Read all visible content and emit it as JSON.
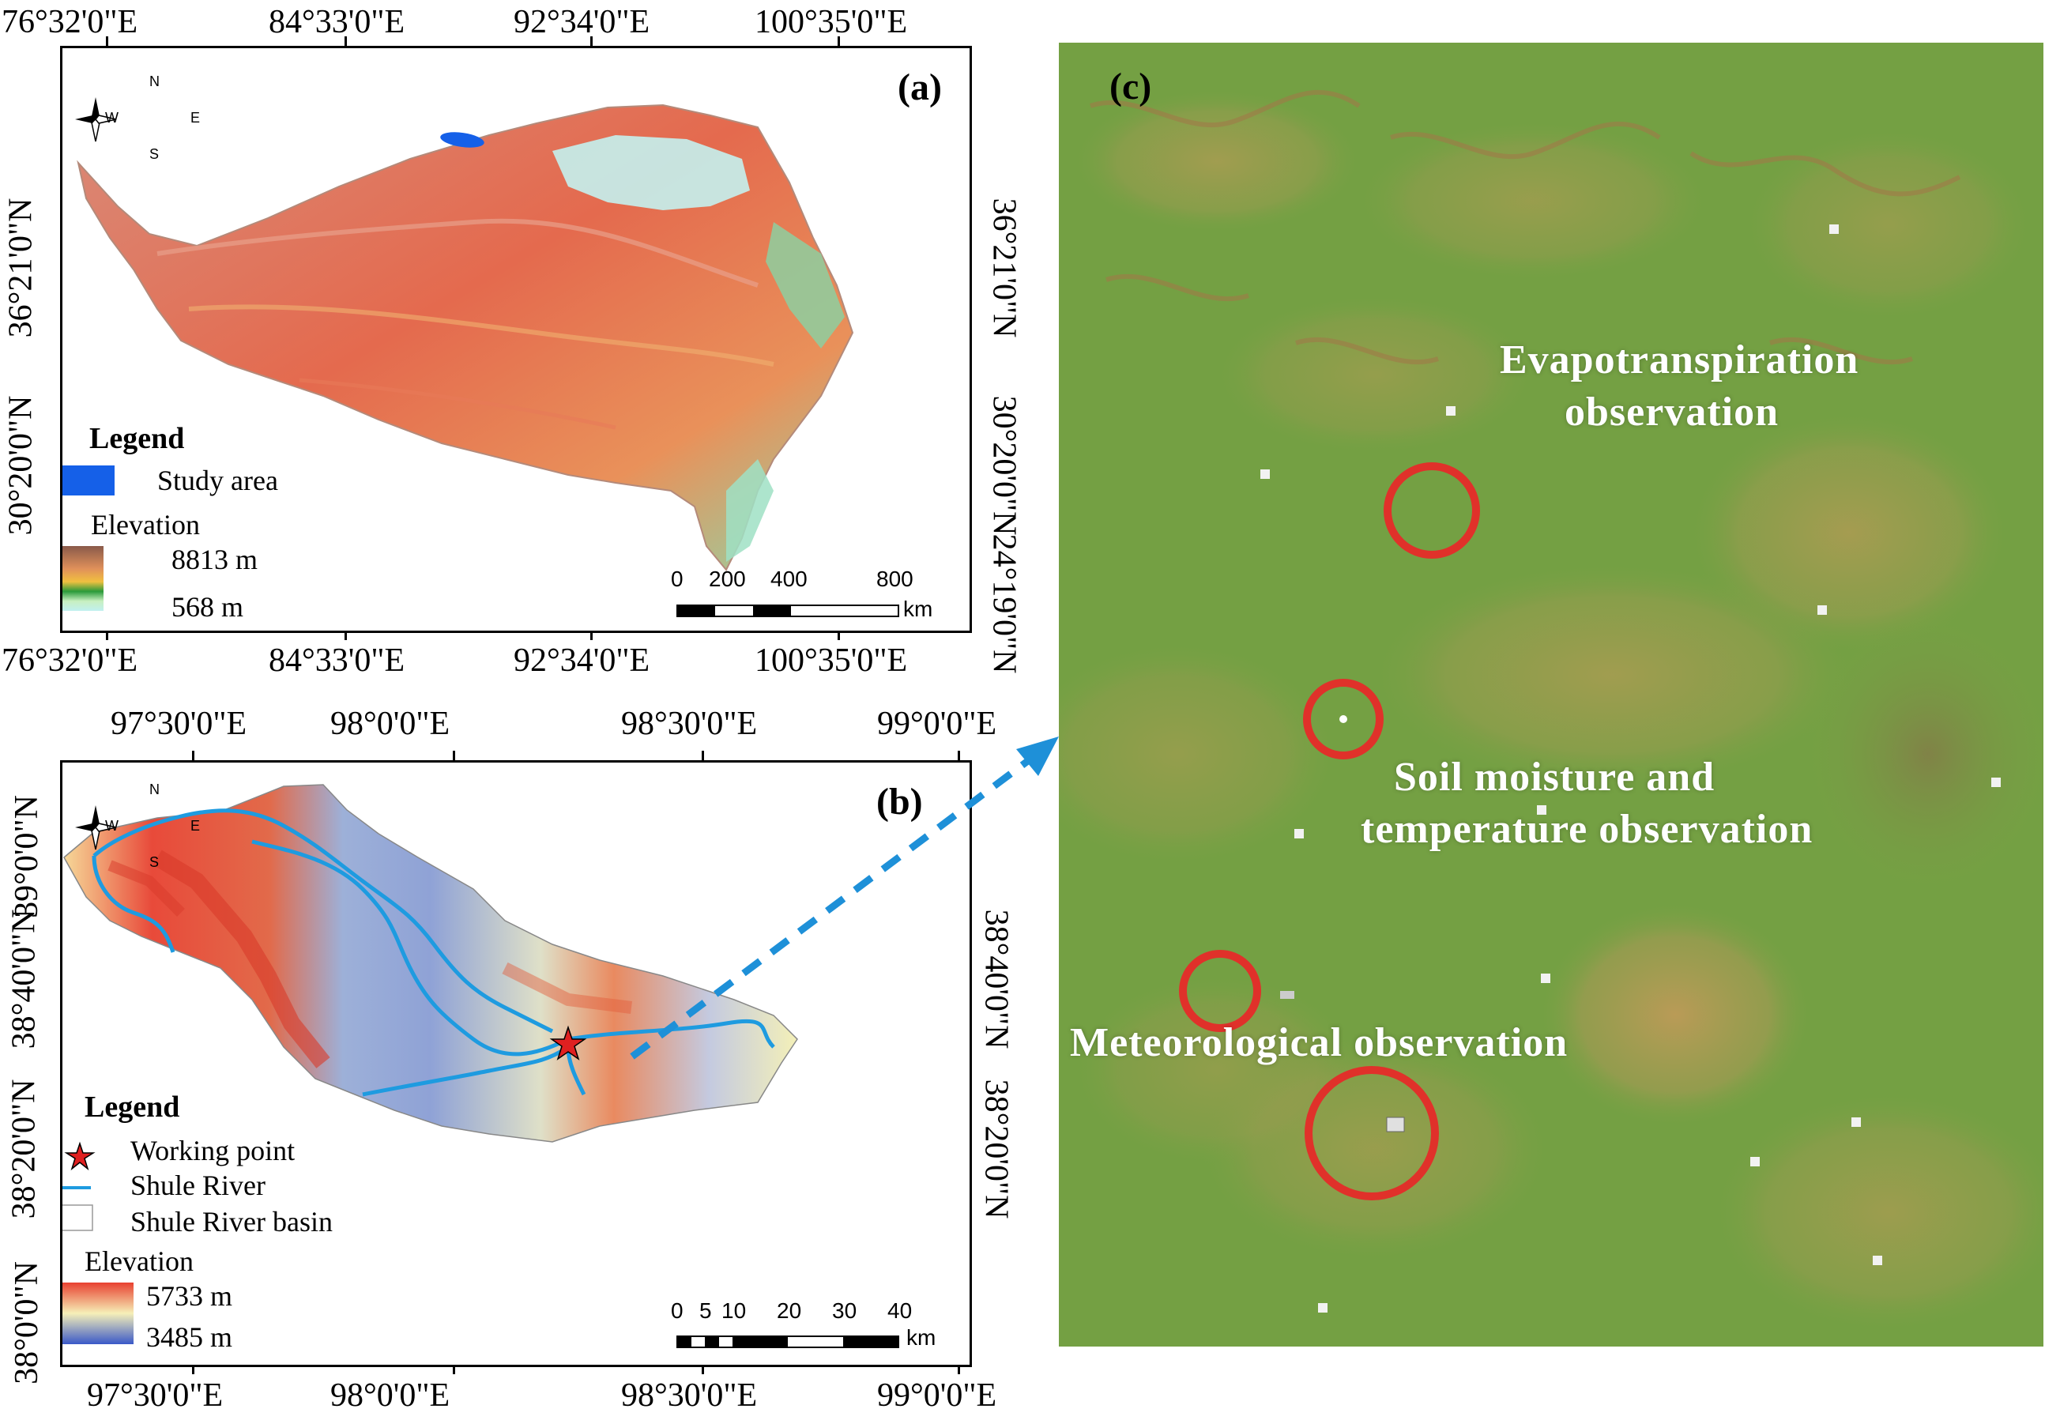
{
  "panel_a": {
    "letter": "(a)",
    "top_ticks": [
      "76°32'0\"E",
      "84°33'0\"E",
      "92°34'0\"E",
      "100°35'0\"E"
    ],
    "bottom_ticks": [
      "76°32'0\"E",
      "84°33'0\"E",
      "92°34'0\"E",
      "100°35'0\"E"
    ],
    "left_ticks": [
      "36°21'0\"N",
      "30°20'0\"N"
    ],
    "right_ticks": [
      "36°21'0\"N",
      "30°20'0\"N",
      "24°19'0\"N"
    ],
    "compass": {
      "n": "N",
      "s": "S",
      "e": "E",
      "w": "W"
    },
    "legend": {
      "title": "Legend",
      "study_area": "Study area",
      "elevation_title": "Elevation",
      "elev_high": "8813 m",
      "elev_low": "568 m"
    },
    "scale": {
      "labels": [
        "0",
        "200",
        "400",
        "800"
      ],
      "unit": "km"
    }
  },
  "panel_b": {
    "letter": "(b)",
    "top_ticks": [
      "97°30'0\"E",
      "98°0'0\"E",
      "98°30'0\"E",
      "99°0'0\"E"
    ],
    "bottom_ticks": [
      "97°30'0\"E",
      "98°0'0\"E",
      "98°30'0\"E",
      "99°0'0\"E"
    ],
    "left_ticks": [
      "39°0'0\"N",
      "38°40'0\"N",
      "38°20'0\"N",
      "38°0'0\"N"
    ],
    "right_ticks": [
      "38°40'0\"N",
      "38°20'0\"N"
    ],
    "compass": {
      "n": "N",
      "s": "S",
      "e": "E",
      "w": "W"
    },
    "legend": {
      "title": "Legend",
      "working_point": "Working point",
      "river": "Shule River",
      "basin": "Shule River basin",
      "elevation_title": "Elevation",
      "elev_high": "5733 m",
      "elev_low": "3485 m"
    },
    "scale": {
      "labels": [
        "0",
        "5",
        "10",
        "20",
        "30",
        "40"
      ],
      "unit": "km"
    }
  },
  "panel_c": {
    "letter": "(c)",
    "annotations": {
      "evapotranspiration_line1": "Evapotranspiration",
      "evapotranspiration_line2": "observation",
      "soil_line1": "Soil moisture and",
      "soil_line2": "temperature observation",
      "meteorological": "Meteorological observation"
    }
  },
  "colors": {
    "study_area": "#1560e8",
    "river": "#1e9be0",
    "star": "#e02020",
    "circle": "#e0312a",
    "arrow": "#1e90d8"
  }
}
